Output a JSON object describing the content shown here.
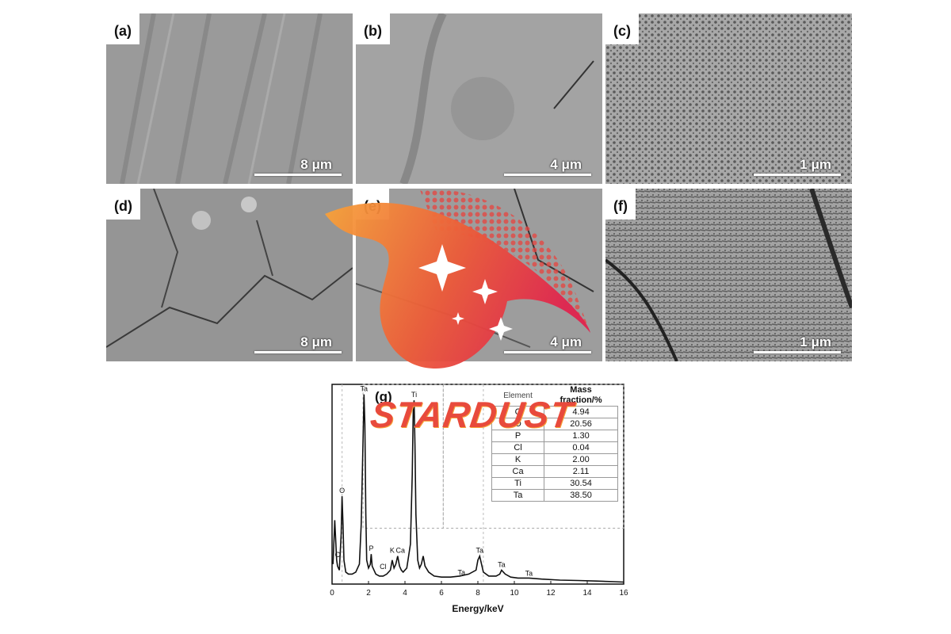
{
  "panels": [
    {
      "letter": "(a)",
      "scale": "8 μm"
    },
    {
      "letter": "(b)",
      "scale": "4 μm"
    },
    {
      "letter": "(c)",
      "scale": "1 μm"
    },
    {
      "letter": "(d)",
      "scale": "8 μm"
    },
    {
      "letter": "(e)",
      "scale": "4 μm"
    },
    {
      "letter": "(f)",
      "scale": "1 μm"
    }
  ],
  "eds": {
    "panel_letter": "(g)",
    "table": {
      "header_element": "Element",
      "header_mass_1": "Mass",
      "header_mass_2": "fraction/%",
      "rows": [
        {
          "element": "C",
          "value": "4.94"
        },
        {
          "element": "O",
          "value": "20.56"
        },
        {
          "element": "P",
          "value": "1.30"
        },
        {
          "element": "Cl",
          "value": "0.04"
        },
        {
          "element": "K",
          "value": "2.00"
        },
        {
          "element": "Ca",
          "value": "2.11"
        },
        {
          "element": "Ti",
          "value": "30.54"
        },
        {
          "element": "Ta",
          "value": "38.50"
        }
      ]
    }
  },
  "chart_data": {
    "type": "line",
    "xlabel": "Energy/keV",
    "ylabel": "",
    "xlim": [
      0,
      16
    ],
    "ylim": [
      0,
      1
    ],
    "xticks": [
      "0",
      "2",
      "4",
      "6",
      "8",
      "10",
      "12",
      "14",
      "16"
    ],
    "series": [
      {
        "x": [
          0.05,
          0.15,
          0.25,
          0.3,
          0.4,
          0.5,
          0.55,
          0.6,
          0.65,
          0.75,
          0.9,
          1.1,
          1.3,
          1.5,
          1.6,
          1.7,
          1.75,
          1.8,
          1.85,
          1.9,
          2.0,
          2.1,
          2.15,
          2.2,
          2.4,
          2.6,
          2.8,
          3.0,
          3.2,
          3.3,
          3.4,
          3.5,
          3.6,
          3.7,
          3.8,
          3.9,
          4.1,
          4.3,
          4.4,
          4.45,
          4.5,
          4.55,
          4.6,
          4.7,
          4.8,
          4.9,
          5.0,
          5.1,
          5.3,
          5.6,
          6.0,
          6.5,
          7.0,
          7.5,
          7.9,
          8.0,
          8.1,
          8.2,
          8.3,
          8.6,
          9.0,
          9.2,
          9.3,
          9.4,
          9.5,
          9.8,
          10.2,
          10.8,
          11.5,
          12.5,
          13.5,
          14.5,
          15.5,
          16.0
        ],
        "y": [
          0.1,
          0.32,
          0.12,
          0.09,
          0.07,
          0.25,
          0.44,
          0.3,
          0.12,
          0.06,
          0.05,
          0.05,
          0.06,
          0.1,
          0.3,
          0.72,
          0.95,
          0.8,
          0.35,
          0.12,
          0.08,
          0.1,
          0.15,
          0.09,
          0.05,
          0.04,
          0.04,
          0.05,
          0.07,
          0.12,
          0.08,
          0.1,
          0.14,
          0.09,
          0.07,
          0.06,
          0.08,
          0.2,
          0.55,
          0.86,
          0.92,
          0.7,
          0.35,
          0.12,
          0.08,
          0.1,
          0.14,
          0.09,
          0.06,
          0.04,
          0.035,
          0.035,
          0.04,
          0.05,
          0.07,
          0.12,
          0.14,
          0.1,
          0.06,
          0.04,
          0.04,
          0.05,
          0.07,
          0.06,
          0.05,
          0.035,
          0.03,
          0.03,
          0.025,
          0.02,
          0.018,
          0.015,
          0.012,
          0.01
        ]
      }
    ],
    "annotations": [
      {
        "label": "C",
        "x": 0.3,
        "y": 0.12
      },
      {
        "label": "O",
        "x": 0.55,
        "y": 0.44
      },
      {
        "label": "Ta",
        "x": 1.75,
        "y": 0.95
      },
      {
        "label": "P",
        "x": 2.15,
        "y": 0.15
      },
      {
        "label": "Cl",
        "x": 2.8,
        "y": 0.06
      },
      {
        "label": "K",
        "x": 3.3,
        "y": 0.14
      },
      {
        "label": "Ca",
        "x": 3.75,
        "y": 0.14
      },
      {
        "label": "Ti",
        "x": 4.5,
        "y": 0.92
      },
      {
        "label": "Ta",
        "x": 7.1,
        "y": 0.03
      },
      {
        "label": "Ta",
        "x": 8.1,
        "y": 0.14
      },
      {
        "label": "Ta",
        "x": 9.3,
        "y": 0.07
      },
      {
        "label": "Ta",
        "x": 10.8,
        "y": 0.025
      }
    ]
  },
  "watermark": {
    "text": "STARDUST",
    "colors": [
      "#f7a33a",
      "#e84a3c",
      "#e0244e"
    ]
  }
}
